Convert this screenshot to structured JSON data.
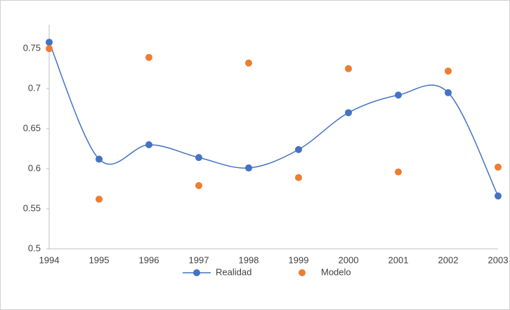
{
  "chart_data": {
    "type": "line",
    "categories": [
      "1994",
      "1995",
      "1996",
      "1997",
      "1998",
      "1999",
      "2000",
      "2001",
      "2002",
      "2003"
    ],
    "series": [
      {
        "name": "Realidad",
        "color": "#4472c4",
        "line": true,
        "smooth": true,
        "values": [
          0.758,
          0.612,
          0.63,
          0.614,
          0.601,
          0.624,
          0.67,
          0.692,
          0.695,
          0.566
        ]
      },
      {
        "name": "Modelo",
        "color": "#ed7d31",
        "line": false,
        "smooth": false,
        "values": [
          0.75,
          0.562,
          0.739,
          0.579,
          0.732,
          0.589,
          0.725,
          0.596,
          0.722,
          0.602
        ]
      }
    ],
    "ylim": [
      0.5,
      0.78
    ],
    "yticks": [
      0.5,
      0.55,
      0.6,
      0.65,
      0.7,
      0.75
    ],
    "grid": false,
    "legend": "bottom"
  }
}
